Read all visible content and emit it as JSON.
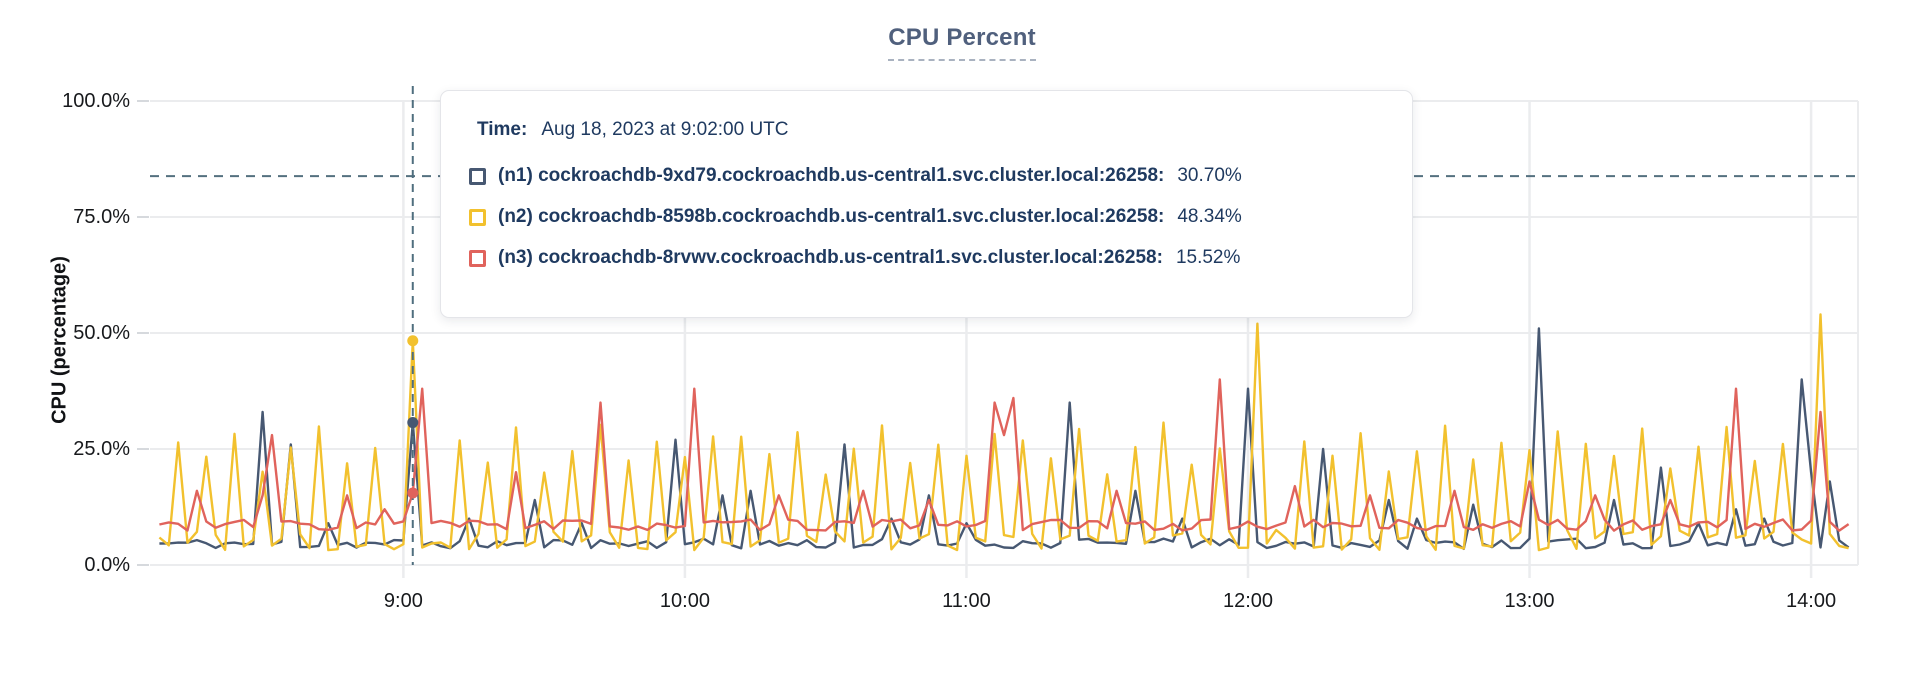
{
  "tooltip": {
    "time_prefix": "Time:"
  },
  "chart_data": {
    "type": "line",
    "title": "CPU Percent",
    "xlabel": "",
    "ylabel": "CPU (percentage)",
    "ylim": [
      0,
      100
    ],
    "grid": true,
    "legend_position": "tooltip",
    "y_ticks": [
      {
        "label": "0.0%",
        "value": 0
      },
      {
        "label": "25.0%",
        "value": 25
      },
      {
        "label": "50.0%",
        "value": 50
      },
      {
        "label": "75.0%",
        "value": 75
      },
      {
        "label": "100.0%",
        "value": 100
      }
    ],
    "x_ticks": [
      {
        "label": "9:00",
        "minute": 540
      },
      {
        "label": "10:00",
        "minute": 600
      },
      {
        "label": "11:00",
        "minute": 660
      },
      {
        "label": "12:00",
        "minute": 720
      },
      {
        "label": "13:00",
        "minute": 780
      },
      {
        "label": "14:00",
        "minute": 840
      }
    ],
    "x_window_minutes": [
      486,
      850
    ],
    "sample_range_minutes": [
      488,
      848
    ],
    "sample_step_minutes": 2,
    "threshold_line": {
      "value": 83.8,
      "style": "dashed"
    },
    "cursor": {
      "minute": 542,
      "time_label": "Aug 18, 2023 at 9:02:00 UTC"
    },
    "series": [
      {
        "id": "n1",
        "label": "(n1) cockroachdb-9xd79.cockroachdb.us-central1.svc.cluster.local:26258:",
        "color": "#475872",
        "cursor_value": 30.7,
        "cursor_value_label": "30.70%",
        "baseline": 4.6,
        "noise": 1.1,
        "spikes": [
          [
            510,
            33
          ],
          [
            516,
            26
          ],
          [
            524,
            9
          ],
          [
            542,
            30.7
          ],
          [
            554,
            10
          ],
          [
            568,
            14
          ],
          [
            578,
            9
          ],
          [
            598,
            27
          ],
          [
            608,
            15
          ],
          [
            614,
            16
          ],
          [
            634,
            26
          ],
          [
            644,
            10
          ],
          [
            652,
            15
          ],
          [
            660,
            9
          ],
          [
            682,
            35
          ],
          [
            696,
            16
          ],
          [
            706,
            10
          ],
          [
            720,
            38
          ],
          [
            736,
            25
          ],
          [
            750,
            14
          ],
          [
            756,
            10
          ],
          [
            768,
            13
          ],
          [
            782,
            51
          ],
          [
            798,
            14
          ],
          [
            808,
            21
          ],
          [
            816,
            9
          ],
          [
            824,
            12
          ],
          [
            830,
            10
          ],
          [
            838,
            40
          ],
          [
            840,
            20
          ],
          [
            844,
            18
          ]
        ]
      },
      {
        "id": "n2",
        "label": "(n2) cockroachdb-8598b.cockroachdb.us-central1.svc.cluster.local:26258:",
        "color": "#f2c12e",
        "cursor_value": 48.34,
        "cursor_value_label": "48.34%",
        "baseline": 5.4,
        "noise": 2.2,
        "periodic": {
          "phase": 492,
          "period": 6,
          "heights": [
            27,
            23,
            29,
            20,
            25,
            30,
            22,
            26,
            24,
            28
          ],
          "suppress_radius": 5
        },
        "spikes": [
          [
            542,
            48.34
          ],
          [
            722,
            52
          ],
          [
            842,
            54
          ]
        ]
      },
      {
        "id": "n3",
        "label": "(n3) cockroachdb-8rvwv.cockroachdb.us-central1.svc.cluster.local:26258:",
        "color": "#e0635c",
        "cursor_value": 15.52,
        "cursor_value_label": "15.52%",
        "baseline": 8.6,
        "noise": 1.2,
        "spikes": [
          [
            496,
            16
          ],
          [
            510,
            15
          ],
          [
            512,
            28
          ],
          [
            528,
            15
          ],
          [
            536,
            12
          ],
          [
            542,
            15.52
          ],
          [
            544,
            38
          ],
          [
            564,
            20
          ],
          [
            582,
            35
          ],
          [
            602,
            38
          ],
          [
            620,
            15
          ],
          [
            638,
            16
          ],
          [
            652,
            14
          ],
          [
            666,
            35
          ],
          [
            668,
            28
          ],
          [
            670,
            36
          ],
          [
            692,
            16
          ],
          [
            714,
            40
          ],
          [
            730,
            17
          ],
          [
            746,
            15
          ],
          [
            764,
            16
          ],
          [
            780,
            18
          ],
          [
            794,
            15
          ],
          [
            810,
            14
          ],
          [
            824,
            38
          ],
          [
            842,
            33
          ]
        ]
      }
    ]
  }
}
